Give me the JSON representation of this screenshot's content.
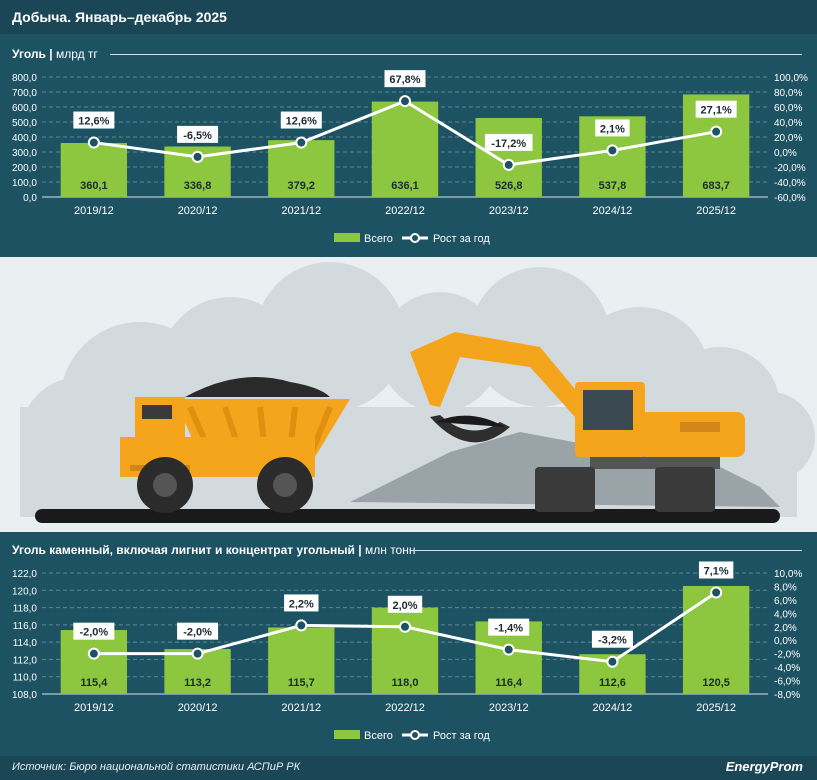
{
  "page_title": "Добыча. Январь–декабрь 2025",
  "source": "Источник: Бюро национальной статистики АСПиР РК",
  "logo": "EnergyProm",
  "colors": {
    "bar": "#8dc63f",
    "line": "#ffffff",
    "grid": "#5d8793",
    "panel": "#1d5263"
  },
  "chart_data": [
    {
      "type": "bar",
      "title": "Уголь",
      "unit": "млрд тг",
      "categories": [
        "2019/12",
        "2020/12",
        "2021/12",
        "2022/12",
        "2023/12",
        "2024/12",
        "2025/12"
      ],
      "series": [
        {
          "name": "Всего",
          "type": "bar",
          "axis": "left",
          "values": [
            360.1,
            336.8,
            379.2,
            636.1,
            526.8,
            537.8,
            683.7
          ],
          "labels": [
            "360,1",
            "336,8",
            "379,2",
            "636,1",
            "526,8",
            "537,8",
            "683,7"
          ]
        },
        {
          "name": "Рост за год",
          "type": "line",
          "axis": "right",
          "values": [
            12.6,
            -6.5,
            12.6,
            67.8,
            -17.2,
            2.1,
            27.1
          ],
          "labels": [
            "12,6%",
            "-6,5%",
            "12,6%",
            "67,8%",
            "-17,2%",
            "2,1%",
            "27,1%"
          ]
        }
      ],
      "ylim": [
        0,
        800
      ],
      "yticks": [
        "0,0",
        "100,0",
        "200,0",
        "300,0",
        "400,0",
        "500,0",
        "600,0",
        "700,0",
        "800,0"
      ],
      "y2lim": [
        -60,
        100
      ],
      "y2ticks": [
        "-60,0%",
        "-40,0%",
        "-20,0%",
        "0,0%",
        "20,0%",
        "40,0%",
        "60,0%",
        "80,0%",
        "100,0%"
      ],
      "legend": {
        "bar": "Всего",
        "line": "Рост за год",
        "placement": "bottom"
      }
    },
    {
      "type": "bar",
      "title": "Уголь каменный, включая лигнит и концентрат угольный",
      "unit": "млн тонн",
      "categories": [
        "2019/12",
        "2020/12",
        "2021/12",
        "2022/12",
        "2023/12",
        "2024/12",
        "2025/12"
      ],
      "series": [
        {
          "name": "Всего",
          "type": "bar",
          "axis": "left",
          "values": [
            115.4,
            113.2,
            115.7,
            118.0,
            116.4,
            112.6,
            120.5
          ],
          "labels": [
            "115,4",
            "113,2",
            "115,7",
            "118,0",
            "116,4",
            "112,6",
            "120,5"
          ]
        },
        {
          "name": "Рост за год",
          "type": "line",
          "axis": "right",
          "values": [
            -2.0,
            -2.0,
            2.2,
            2.0,
            -1.4,
            -3.2,
            7.1
          ],
          "labels": [
            "-2,0%",
            "-2,0%",
            "2,2%",
            "2,0%",
            "-1,4%",
            "-3,2%",
            "7,1%"
          ]
        }
      ],
      "ylim": [
        108,
        122
      ],
      "yticks": [
        "108,0",
        "110,0",
        "112,0",
        "114,0",
        "116,0",
        "118,0",
        "120,0",
        "122,0"
      ],
      "y2lim": [
        -8,
        10
      ],
      "y2ticks": [
        "-8,0%",
        "-6,0%",
        "-4,0%",
        "-2,0%",
        "0,0%",
        "2,0%",
        "4,0%",
        "6,0%",
        "8,0%",
        "10,0%"
      ],
      "legend": {
        "bar": "Всего",
        "line": "Рост за год",
        "placement": "bottom"
      }
    }
  ]
}
